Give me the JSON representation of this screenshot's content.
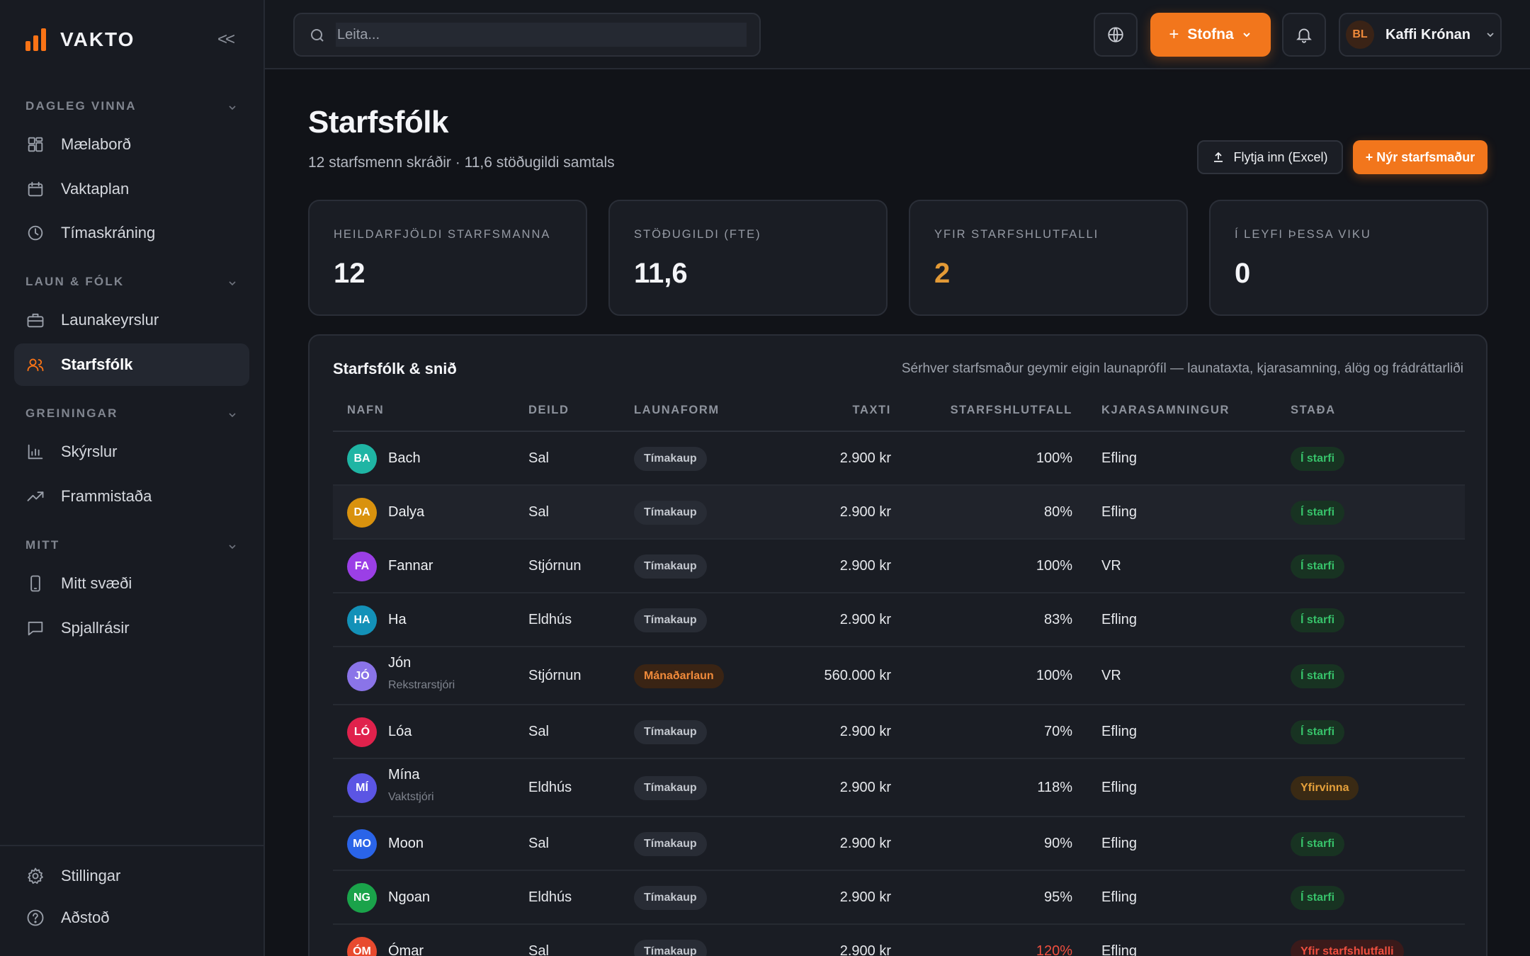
{
  "brand": {
    "name": "VAKTO",
    "accent": "#f97316"
  },
  "sidebar": {
    "collapse_glyph": "<<",
    "sections": [
      {
        "label": "DAGLEG VINNA",
        "items": [
          {
            "label": "Mælaborð",
            "icon": "dashboard-icon"
          },
          {
            "label": "Vaktaplan",
            "icon": "calendar-icon"
          },
          {
            "label": "Tímaskráning",
            "icon": "clock-icon"
          }
        ]
      },
      {
        "label": "LAUN & FÓLK",
        "items": [
          {
            "label": "Launakeyrslur",
            "icon": "briefcase-icon"
          },
          {
            "label": "Starfsfólk",
            "icon": "users-icon",
            "active": true
          }
        ]
      },
      {
        "label": "GREININGAR",
        "items": [
          {
            "label": "Skýrslur",
            "icon": "bar-chart-icon"
          },
          {
            "label": "Frammistaða",
            "icon": "trend-line-icon"
          }
        ]
      },
      {
        "label": "MITT",
        "items": [
          {
            "label": "Mitt svæði",
            "icon": "phone-icon"
          },
          {
            "label": "Spjallrásir",
            "icon": "chat-icon"
          }
        ]
      }
    ],
    "footer": [
      {
        "label": "Stillingar",
        "icon": "gear-icon"
      },
      {
        "label": "Aðstoð",
        "icon": "help-icon"
      }
    ]
  },
  "topbar": {
    "search_placeholder": "Leita...",
    "create_label": "Stofna",
    "user": {
      "initials": "BL",
      "name": "Kaffi Krónan"
    }
  },
  "page": {
    "title": "Starfsfólk",
    "subtitle": "12 starfsmenn skráðir · 11,6 stöðugildi samtals",
    "import_label": "Flytja inn (Excel)",
    "new_label": "+ Nýr starfsmaður"
  },
  "stats": [
    {
      "label": "HEILDARFJÖLDI STARFSMANNA",
      "value": "12",
      "color": "#f4f5f8"
    },
    {
      "label": "STÖÐUGILDI (FTE)",
      "value": "11,6",
      "color": "#f4f5f8"
    },
    {
      "label": "YFIR STARFSHLUTFALLI",
      "value": "2",
      "color": "#e39a36"
    },
    {
      "label": "Í LEYFI ÞESSA VIKU",
      "value": "0",
      "color": "#f4f5f8"
    }
  ],
  "table": {
    "title": "Starfsfólk & snið",
    "note": "Sérhver starfsmaður geymir eigin launaprófíl — launataxta, kjarasamning, álög og frádráttarliði",
    "columns": {
      "name": "NAFN",
      "dept": "DEILD",
      "payform": "LAUNAFORM",
      "rate": "TAXTI",
      "fte": "STARFSHLUTFALL",
      "agreement": "KJARASAMNINGUR",
      "status": "STAÐA"
    },
    "rows": [
      {
        "initials": "BA",
        "color": "#1fb5a4",
        "name": "Bach",
        "role": "",
        "dept": "Sal",
        "payform": "Tímakaup",
        "rate": "2.900 kr",
        "fte": "100%",
        "agreement": "Efling",
        "status": "Í starfi",
        "status_kind": "ok"
      },
      {
        "initials": "DA",
        "color": "#d9920e",
        "name": "Dalya",
        "role": "",
        "dept": "Sal",
        "payform": "Tímakaup",
        "rate": "2.900 kr",
        "fte": "80%",
        "agreement": "Efling",
        "status": "Í starfi",
        "status_kind": "ok",
        "highlight": true
      },
      {
        "initials": "FA",
        "color": "#9b3fe6",
        "name": "Fannar",
        "role": "",
        "dept": "Stjórnun",
        "payform": "Tímakaup",
        "rate": "2.900 kr",
        "fte": "100%",
        "agreement": "VR",
        "status": "Í starfi",
        "status_kind": "ok"
      },
      {
        "initials": "HA",
        "color": "#1391b8",
        "name": "Ha",
        "role": "",
        "dept": "Eldhús",
        "payform": "Tímakaup",
        "rate": "2.900 kr",
        "fte": "83%",
        "agreement": "Efling",
        "status": "Í starfi",
        "status_kind": "ok"
      },
      {
        "initials": "JÓ",
        "color": "#8a74e8",
        "name": "Jón",
        "role": "Rekstrarstjóri",
        "dept": "Stjórnun",
        "payform": "Mánaðarlaun",
        "rate": "560.000 kr",
        "fte": "100%",
        "agreement": "VR",
        "status": "Í starfi",
        "status_kind": "ok"
      },
      {
        "initials": "LÓ",
        "color": "#e0224c",
        "name": "Lóa",
        "role": "",
        "dept": "Sal",
        "payform": "Tímakaup",
        "rate": "2.900 kr",
        "fte": "70%",
        "agreement": "Efling",
        "status": "Í starfi",
        "status_kind": "ok"
      },
      {
        "initials": "MÍ",
        "color": "#5b55e4",
        "name": "Mína",
        "role": "Vaktstjóri",
        "dept": "Eldhús",
        "payform": "Tímakaup",
        "rate": "2.900 kr",
        "fte": "118%",
        "agreement": "Efling",
        "status": "Yfirvinna",
        "status_kind": "over"
      },
      {
        "initials": "MO",
        "color": "#2a64e8",
        "name": "Moon",
        "role": "",
        "dept": "Sal",
        "payform": "Tímakaup",
        "rate": "2.900 kr",
        "fte": "90%",
        "agreement": "Efling",
        "status": "Í starfi",
        "status_kind": "ok"
      },
      {
        "initials": "NG",
        "color": "#1aa34a",
        "name": "Ngoan",
        "role": "",
        "dept": "Eldhús",
        "payform": "Tímakaup",
        "rate": "2.900 kr",
        "fte": "95%",
        "agreement": "Efling",
        "status": "Í starfi",
        "status_kind": "ok"
      },
      {
        "initials": "ÓM",
        "color": "#e84a2e",
        "name": "Ómar",
        "role": "",
        "dept": "Sal",
        "payform": "Tímakaup",
        "rate": "2.900 kr",
        "fte": "120%",
        "fte_color": "#ef4f3f",
        "agreement": "Efling",
        "status": "Yfir starfshlutfalli",
        "status_kind": "high"
      }
    ]
  }
}
